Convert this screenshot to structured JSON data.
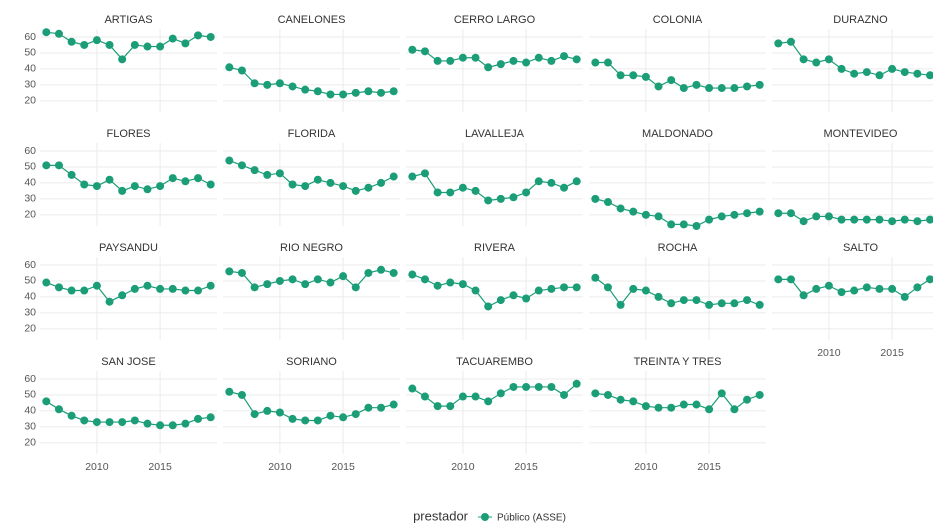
{
  "chart_data": {
    "type": "line",
    "x": [
      2006,
      2007,
      2008,
      2009,
      2010,
      2011,
      2012,
      2013,
      2014,
      2015,
      2016,
      2017,
      2018,
      2019
    ],
    "xlim": [
      2005.5,
      2019.5
    ],
    "xticks": [
      2010,
      2015
    ],
    "ylim": [
      13,
      65
    ],
    "yticks": [
      20,
      30,
      40,
      50,
      60
    ],
    "grid": true,
    "color": "#1b9e77",
    "columns": 5,
    "legend_title": "prestador",
    "series_name": "Público (ASSE)",
    "facets": [
      {
        "title": "ARTIGAS",
        "values": [
          63,
          62,
          57,
          55,
          58,
          55,
          46,
          55,
          54,
          54,
          59,
          56,
          61,
          60
        ]
      },
      {
        "title": "CANELONES",
        "values": [
          41,
          39,
          31,
          30,
          31,
          29,
          27,
          26,
          24,
          24,
          25,
          26,
          25,
          26
        ]
      },
      {
        "title": "CERRO LARGO",
        "values": [
          52,
          51,
          45,
          45,
          47,
          47,
          41,
          43,
          45,
          44,
          47,
          45,
          48,
          46
        ]
      },
      {
        "title": "COLONIA",
        "values": [
          44,
          44,
          36,
          36,
          35,
          29,
          33,
          28,
          30,
          28,
          28,
          28,
          29,
          30
        ]
      },
      {
        "title": "DURAZNO",
        "values": [
          56,
          57,
          46,
          44,
          46,
          40,
          37,
          38,
          36,
          40,
          38,
          37,
          36,
          37
        ]
      },
      {
        "title": "FLORES",
        "values": [
          51,
          51,
          45,
          39,
          38,
          42,
          35,
          38,
          36,
          38,
          43,
          41,
          43,
          39
        ]
      },
      {
        "title": "FLORIDA",
        "values": [
          54,
          51,
          48,
          45,
          46,
          39,
          38,
          42,
          40,
          38,
          35,
          37,
          40,
          44
        ]
      },
      {
        "title": "LAVALLEJA",
        "values": [
          44,
          46,
          34,
          34,
          37,
          35,
          29,
          30,
          31,
          34,
          41,
          40,
          37,
          41
        ]
      },
      {
        "title": "MALDONADO",
        "values": [
          30,
          28,
          24,
          22,
          20,
          19,
          14,
          14,
          13,
          17,
          19,
          20,
          21,
          22
        ]
      },
      {
        "title": "MONTEVIDEO",
        "values": [
          21,
          21,
          16,
          19,
          19,
          17,
          17,
          17,
          17,
          16,
          17,
          16,
          17,
          17
        ]
      },
      {
        "title": "PAYSANDU",
        "values": [
          49,
          46,
          44,
          44,
          47,
          37,
          41,
          45,
          47,
          45,
          45,
          44,
          44,
          47
        ]
      },
      {
        "title": "RIO NEGRO",
        "values": [
          56,
          55,
          46,
          48,
          50,
          51,
          48,
          51,
          49,
          53,
          46,
          55,
          57,
          55
        ]
      },
      {
        "title": "RIVERA",
        "values": [
          54,
          51,
          47,
          49,
          48,
          44,
          34,
          38,
          41,
          39,
          44,
          45,
          46,
          46
        ]
      },
      {
        "title": "ROCHA",
        "values": [
          52,
          46,
          35,
          45,
          44,
          40,
          36,
          38,
          38,
          35,
          36,
          36,
          38,
          35
        ]
      },
      {
        "title": "SALTO",
        "values": [
          51,
          51,
          41,
          45,
          47,
          43,
          44,
          46,
          45,
          45,
          40,
          46,
          51,
          52
        ]
      },
      {
        "title": "SAN JOSE",
        "values": [
          46,
          41,
          37,
          34,
          33,
          33,
          33,
          34,
          32,
          31,
          31,
          32,
          35,
          36
        ]
      },
      {
        "title": "SORIANO",
        "values": [
          52,
          50,
          38,
          40,
          39,
          35,
          34,
          34,
          37,
          36,
          38,
          42,
          42,
          44
        ]
      },
      {
        "title": "TACUAREMBO",
        "values": [
          54,
          49,
          43,
          43,
          49,
          49,
          46,
          51,
          55,
          55,
          55,
          55,
          50,
          57
        ]
      },
      {
        "title": "TREINTA Y TRES",
        "values": [
          51,
          50,
          47,
          46,
          43,
          42,
          42,
          44,
          44,
          41,
          51,
          41,
          47,
          50
        ]
      }
    ]
  }
}
